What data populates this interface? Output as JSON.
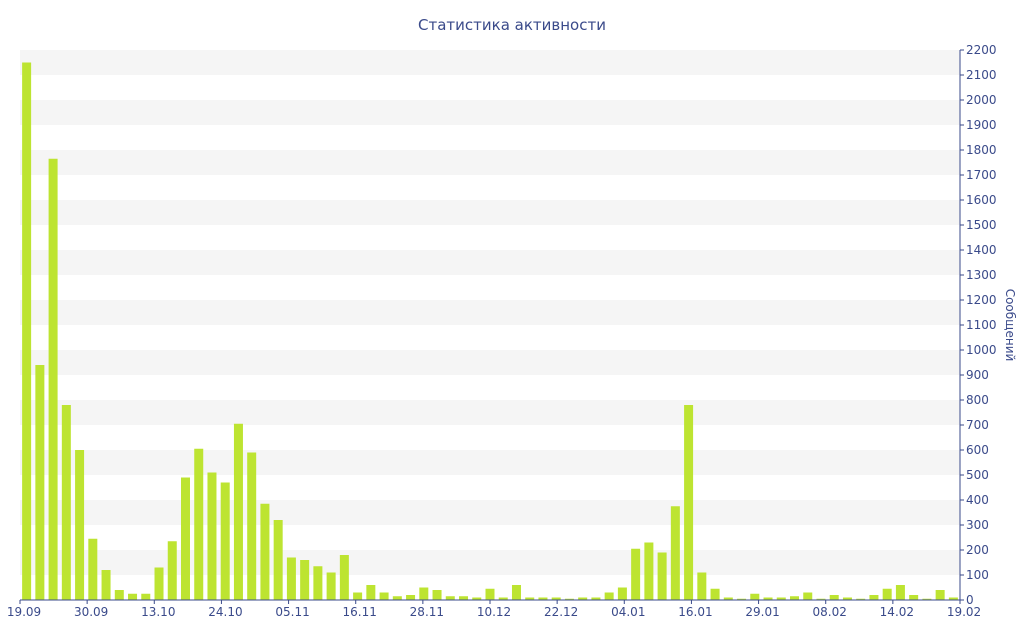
{
  "colors": {
    "bar": "#bde431",
    "band": "#f5f5f5",
    "axis": "#3a4a8a",
    "text": "#3a4a8a"
  },
  "chart_data": {
    "type": "bar",
    "title": "Статистика активности",
    "xlabel": "",
    "ylabel": "Сообщений",
    "y_axis_side": "right",
    "ylim": [
      0,
      2200
    ],
    "y_ticks": [
      0,
      100,
      200,
      300,
      400,
      500,
      600,
      700,
      800,
      900,
      1000,
      1100,
      1200,
      1300,
      1400,
      1500,
      1600,
      1700,
      1800,
      1900,
      2000,
      2100,
      2200
    ],
    "grid": "alternating horizontal bands",
    "x_tick_labels": [
      "19.09",
      "30.09",
      "13.10",
      "24.10",
      "05.11",
      "16.11",
      "28.11",
      "10.12",
      "22.12",
      "04.01",
      "16.01",
      "29.01",
      "08.02",
      "14.02",
      "19.02"
    ],
    "series": [
      {
        "values": [
          2150,
          940,
          1765,
          780,
          600,
          245,
          120,
          40,
          25,
          25,
          130,
          235,
          490,
          605,
          510,
          470,
          705,
          590,
          385,
          320,
          170,
          160,
          135,
          110,
          180,
          30,
          60,
          30,
          15,
          20,
          50,
          40,
          15,
          15,
          10,
          45,
          10,
          60,
          10,
          10,
          10,
          5,
          10,
          10,
          30,
          50,
          205,
          230,
          190,
          375,
          780,
          110,
          45,
          10,
          5,
          25,
          10,
          10,
          15,
          30,
          5,
          20,
          10,
          5,
          20,
          45,
          60,
          20,
          5,
          40,
          10
        ]
      }
    ]
  }
}
